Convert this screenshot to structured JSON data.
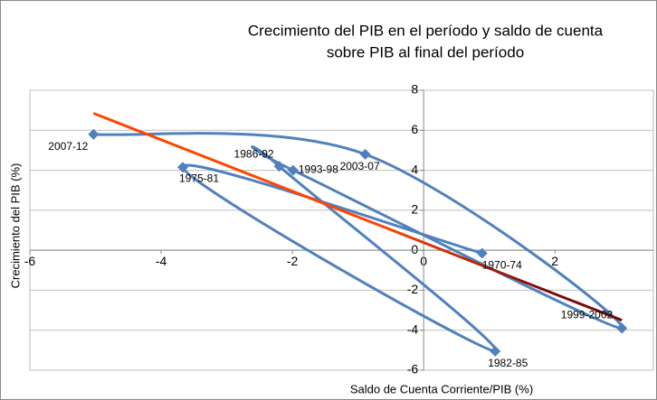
{
  "chart_data": {
    "type": "scatter",
    "title": [
      "Crecimiento del PIB en el período y saldo de cuenta",
      "sobre PIB al final del período"
    ],
    "xlabel": "Saldo de Cuenta Corriente/PIB (%)",
    "ylabel": "Crecimiento del PIB (%)",
    "point_labels": [
      "1970-74",
      "1975-81",
      "1982-85",
      "1986-92",
      "1993-98",
      "1999-2002",
      "2003-07",
      "2007-12"
    ],
    "x": [
      0.89,
      -3.67,
      1.09,
      -2.2,
      -1.99,
      3.02,
      -0.89,
      -5.03
    ],
    "values": [
      -0.15,
      4.15,
      -5.05,
      4.2,
      4.0,
      -3.9,
      4.8,
      5.8
    ],
    "color": "#4f81bd",
    "smooth": true,
    "trendline": {
      "x": [
        -5.03,
        3.02
      ],
      "values": [
        6.85,
        -3.5
      ],
      "colors": [
        "#ff4500",
        "#7b0a0a"
      ]
    },
    "xlim": [
      -6,
      3.5
    ],
    "xticks": [
      -6,
      -4,
      -2,
      0,
      2
    ],
    "ylim": [
      -6,
      8
    ],
    "yticks": [
      -6,
      -4,
      -2,
      0,
      2,
      4,
      6,
      8
    ],
    "grid": true
  }
}
